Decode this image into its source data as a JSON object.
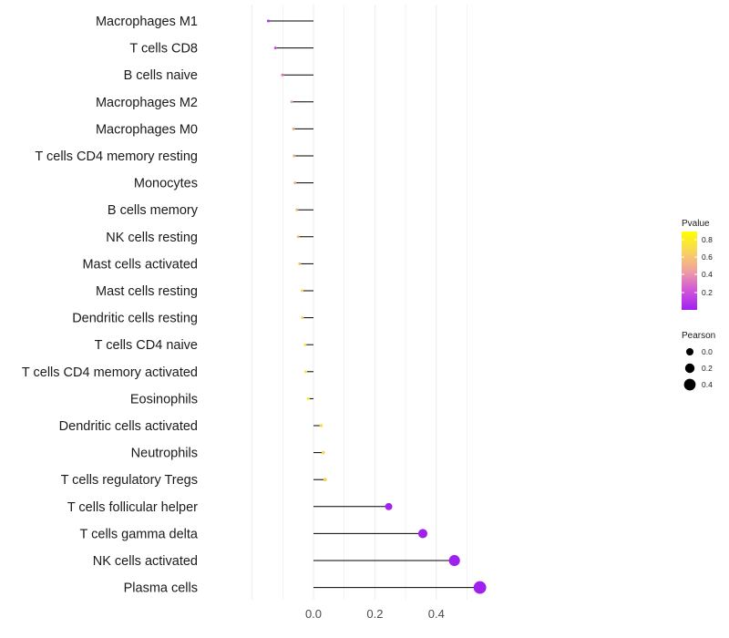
{
  "chart_data": {
    "type": "lollipop",
    "categories": [
      "Macrophages M1",
      "T cells CD8",
      "B cells naive",
      "Macrophages M2",
      "Macrophages M0",
      "T cells CD4 memory resting",
      "Monocytes",
      "B cells memory",
      "NK cells resting",
      "Mast cells activated",
      "Mast cells resting",
      "Dendritic cells resting",
      "T cells CD4 naive",
      "T cells CD4 memory activated",
      "Eosinophils",
      "Dendritic cells activated",
      "Neutrophils",
      "T cells regulatory  Tregs ",
      "T cells follicular helper",
      "T cells gamma delta",
      "NK cells activated",
      "Plasma cells"
    ],
    "values": [
      -0.147,
      -0.124,
      -0.101,
      -0.071,
      -0.065,
      -0.063,
      -0.06,
      -0.054,
      -0.05,
      -0.045,
      -0.037,
      -0.036,
      -0.027,
      -0.025,
      -0.017,
      0.025,
      0.032,
      0.038,
      0.245,
      0.356,
      0.459,
      0.542
    ],
    "pvalues": [
      0.08,
      0.2,
      0.38,
      0.58,
      0.6,
      0.62,
      0.63,
      0.65,
      0.68,
      0.7,
      0.78,
      0.79,
      0.82,
      0.83,
      0.86,
      0.82,
      0.79,
      0.76,
      0.01,
      0.002,
      0.0005,
      0.0001
    ],
    "x_ticks": [
      "0.0",
      "0.2",
      "0.4"
    ],
    "xlim": [
      -0.2,
      0.56
    ],
    "legend_pvalue": {
      "title": "Pvalue",
      "ticks": [
        "0.8",
        "0.6",
        "0.4",
        "0.2"
      ],
      "colors": [
        "#ffff00",
        "#a020f0"
      ]
    },
    "legend_pearson": {
      "title": "Pearson",
      "labels": [
        "0.0",
        "0.2",
        "0.4"
      ]
    }
  }
}
